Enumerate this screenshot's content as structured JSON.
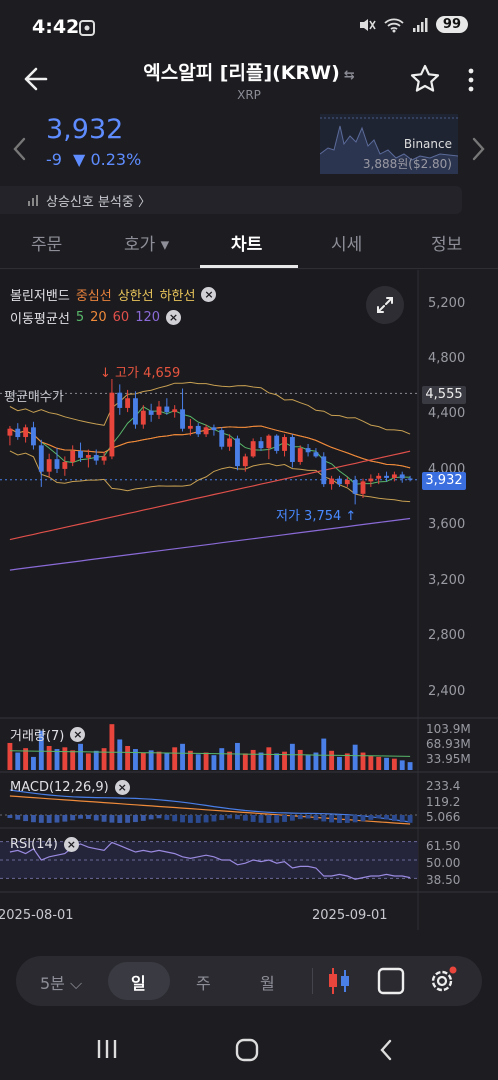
{
  "status": {
    "time": "4:42",
    "battery": "99"
  },
  "header": {
    "title": "엑스알피 [리플](KRW)",
    "swap_glyph": "⇆",
    "subtitle": "XRP"
  },
  "price": {
    "current": "3,932",
    "change_abs": "-9",
    "change_pct": "▼ 0.23%",
    "exchange": "Binance",
    "exchange_price": "3,888원($2.80)"
  },
  "signal": {
    "label": "상승신호 분석중 〉"
  },
  "tabs": [
    {
      "label": "주문"
    },
    {
      "label": "호가 ▾"
    },
    {
      "label": "차트"
    },
    {
      "label": "시세"
    },
    {
      "label": "정보"
    }
  ],
  "legend": {
    "bollinger": "볼린저밴드",
    "mid": "중심선",
    "upper": "상한선",
    "lower": "하한선",
    "ma": "이동평균선",
    "ma5": "5",
    "ma20": "20",
    "ma60": "60",
    "ma120": "120"
  },
  "axis": {
    "price_ticks": [
      "5,200",
      "4,800",
      "4,400",
      "4,000",
      "3,600",
      "3,200",
      "2,800",
      "2,400"
    ],
    "avg_buy_label": "평균매수가",
    "avg_buy_tag": "4,555",
    "current_tag": "3,932",
    "high_label": "고가 4,659",
    "low_label": "저가 3,754",
    "volume_label": "거래량(7)",
    "volume_ticks": [
      "103.9M",
      "68.93M",
      "33.95M"
    ],
    "macd_label": "MACD(12,26,9)",
    "macd_ticks": [
      "233.4",
      "119.2",
      "5.066"
    ],
    "rsi_label": "RSI(14)",
    "rsi_ticks": [
      "61.50",
      "50.00",
      "38.50"
    ],
    "dates": [
      "2025-08-01",
      "2025-09-01"
    ]
  },
  "toolbar": {
    "interval": "5분 ⌵",
    "day": "일",
    "week": "주",
    "month": "월"
  },
  "colors": {
    "up": "#e8453c",
    "down": "#4a7fe8",
    "accent": "#5f8dff",
    "ma5": "#59b86a",
    "ma20": "#ee8a3a",
    "ma60": "#e0504a",
    "ma120": "#8a6ad6",
    "bb_mid": "#e8823c",
    "bb_band": "#c8a052"
  },
  "chart_data": {
    "type": "candlestick",
    "price_range": [
      2400,
      5200
    ],
    "candles": [
      {
        "o": 4250,
        "h": 4320,
        "l": 4180,
        "c": 4300
      },
      {
        "o": 4300,
        "h": 4340,
        "l": 4220,
        "c": 4240
      },
      {
        "o": 4240,
        "h": 4330,
        "l": 4200,
        "c": 4310
      },
      {
        "o": 4310,
        "h": 4350,
        "l": 4150,
        "c": 4180
      },
      {
        "o": 4180,
        "h": 4220,
        "l": 3880,
        "c": 3990
      },
      {
        "o": 3990,
        "h": 4120,
        "l": 3950,
        "c": 4080
      },
      {
        "o": 4080,
        "h": 4160,
        "l": 3980,
        "c": 4010
      },
      {
        "o": 4010,
        "h": 4100,
        "l": 3960,
        "c": 4060
      },
      {
        "o": 4060,
        "h": 4180,
        "l": 4030,
        "c": 4140
      },
      {
        "o": 4140,
        "h": 4200,
        "l": 4060,
        "c": 4090
      },
      {
        "o": 4090,
        "h": 4150,
        "l": 4020,
        "c": 4110
      },
      {
        "o": 4110,
        "h": 4150,
        "l": 4040,
        "c": 4070
      },
      {
        "o": 4070,
        "h": 4130,
        "l": 4040,
        "c": 4100
      },
      {
        "o": 4100,
        "h": 4659,
        "l": 4080,
        "c": 4560
      },
      {
        "o": 4560,
        "h": 4620,
        "l": 4400,
        "c": 4450
      },
      {
        "o": 4450,
        "h": 4580,
        "l": 4420,
        "c": 4520
      },
      {
        "o": 4520,
        "h": 4570,
        "l": 4300,
        "c": 4330
      },
      {
        "o": 4330,
        "h": 4470,
        "l": 4300,
        "c": 4430
      },
      {
        "o": 4430,
        "h": 4480,
        "l": 4350,
        "c": 4400
      },
      {
        "o": 4400,
        "h": 4500,
        "l": 4370,
        "c": 4460
      },
      {
        "o": 4460,
        "h": 4520,
        "l": 4400,
        "c": 4420
      },
      {
        "o": 4420,
        "h": 4470,
        "l": 4380,
        "c": 4440
      },
      {
        "o": 4440,
        "h": 4590,
        "l": 4280,
        "c": 4300
      },
      {
        "o": 4300,
        "h": 4370,
        "l": 4250,
        "c": 4320
      },
      {
        "o": 4320,
        "h": 4340,
        "l": 4240,
        "c": 4260
      },
      {
        "o": 4260,
        "h": 4330,
        "l": 4240,
        "c": 4310
      },
      {
        "o": 4310,
        "h": 4330,
        "l": 4250,
        "c": 4290
      },
      {
        "o": 4290,
        "h": 4310,
        "l": 4150,
        "c": 4170
      },
      {
        "o": 4170,
        "h": 4260,
        "l": 4140,
        "c": 4230
      },
      {
        "o": 4230,
        "h": 4250,
        "l": 4000,
        "c": 4030
      },
      {
        "o": 4030,
        "h": 4120,
        "l": 3990,
        "c": 4100
      },
      {
        "o": 4100,
        "h": 4230,
        "l": 4090,
        "c": 4210
      },
      {
        "o": 4210,
        "h": 4240,
        "l": 4140,
        "c": 4160
      },
      {
        "o": 4160,
        "h": 4260,
        "l": 4080,
        "c": 4250
      },
      {
        "o": 4250,
        "h": 4260,
        "l": 4120,
        "c": 4140
      },
      {
        "o": 4140,
        "h": 4260,
        "l": 4100,
        "c": 4240
      },
      {
        "o": 4240,
        "h": 4260,
        "l": 4020,
        "c": 4060
      },
      {
        "o": 4060,
        "h": 4180,
        "l": 4040,
        "c": 4160
      },
      {
        "o": 4160,
        "h": 4190,
        "l": 4100,
        "c": 4130
      },
      {
        "o": 4130,
        "h": 4160,
        "l": 4090,
        "c": 4100
      },
      {
        "o": 4100,
        "h": 4130,
        "l": 3880,
        "c": 3900
      },
      {
        "o": 3900,
        "h": 3960,
        "l": 3860,
        "c": 3940
      },
      {
        "o": 3940,
        "h": 3960,
        "l": 3880,
        "c": 3900
      },
      {
        "o": 3900,
        "h": 3950,
        "l": 3880,
        "c": 3930
      },
      {
        "o": 3930,
        "h": 3960,
        "l": 3754,
        "c": 3830
      },
      {
        "o": 3830,
        "h": 3940,
        "l": 3800,
        "c": 3920
      },
      {
        "o": 3920,
        "h": 3970,
        "l": 3880,
        "c": 3940
      },
      {
        "o": 3940,
        "h": 3980,
        "l": 3900,
        "c": 3960
      },
      {
        "o": 3960,
        "h": 3990,
        "l": 3920,
        "c": 3945
      },
      {
        "o": 3945,
        "h": 3990,
        "l": 3920,
        "c": 3970
      },
      {
        "o": 3970,
        "h": 3990,
        "l": 3910,
        "c": 3941
      },
      {
        "o": 3941,
        "h": 3960,
        "l": 3920,
        "c": 3932
      }
    ],
    "volume_range": [
      0,
      110
    ],
    "volume": [
      62,
      40,
      50,
      30,
      90,
      55,
      48,
      52,
      45,
      60,
      38,
      44,
      50,
      105,
      70,
      55,
      48,
      40,
      45,
      42,
      38,
      52,
      60,
      44,
      36,
      40,
      34,
      50,
      42,
      62,
      38,
      46,
      40,
      52,
      38,
      42,
      60,
      46,
      34,
      40,
      72,
      44,
      30,
      38,
      58,
      40,
      32,
      30,
      28,
      26,
      22,
      18
    ],
    "rsi_range": [
      30,
      70
    ],
    "rsi": [
      55,
      56,
      54,
      57,
      50,
      52,
      53,
      54,
      58,
      60,
      58,
      57,
      56,
      61,
      59,
      57,
      55,
      56,
      55,
      56,
      55,
      54,
      52,
      51,
      52,
      53,
      52,
      50,
      50,
      47,
      48,
      50,
      49,
      50,
      48,
      49,
      45,
      46,
      46,
      45,
      40,
      40,
      41,
      40,
      38,
      39,
      40,
      40,
      41,
      40,
      40,
      39
    ]
  }
}
